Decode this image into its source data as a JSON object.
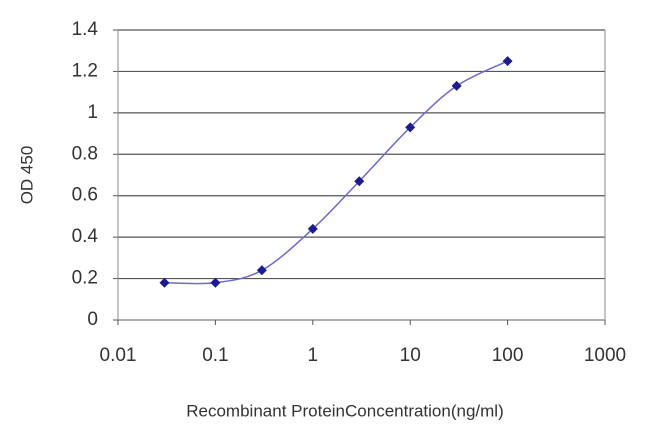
{
  "chart_data": {
    "type": "line",
    "xlabel": "Recombinant ProteinConcentration(ng/ml)",
    "ylabel": "OD 450",
    "x": [
      0.03,
      0.1,
      0.3,
      1,
      3,
      10,
      30,
      100
    ],
    "series": [
      {
        "color": "#1c1c8f",
        "values": [
          0.18,
          0.18,
          0.24,
          0.44,
          0.67,
          0.93,
          1.13,
          1.25
        ]
      }
    ],
    "xscale": "log",
    "xlim": [
      0.01,
      1000
    ],
    "xticks": [
      0.01,
      0.1,
      1,
      10,
      100,
      1000
    ],
    "ylim": [
      0,
      1.4
    ],
    "yticks": [
      0,
      0.2,
      0.4,
      0.6,
      0.8,
      1,
      1.2,
      1.4
    ],
    "grid": true
  }
}
